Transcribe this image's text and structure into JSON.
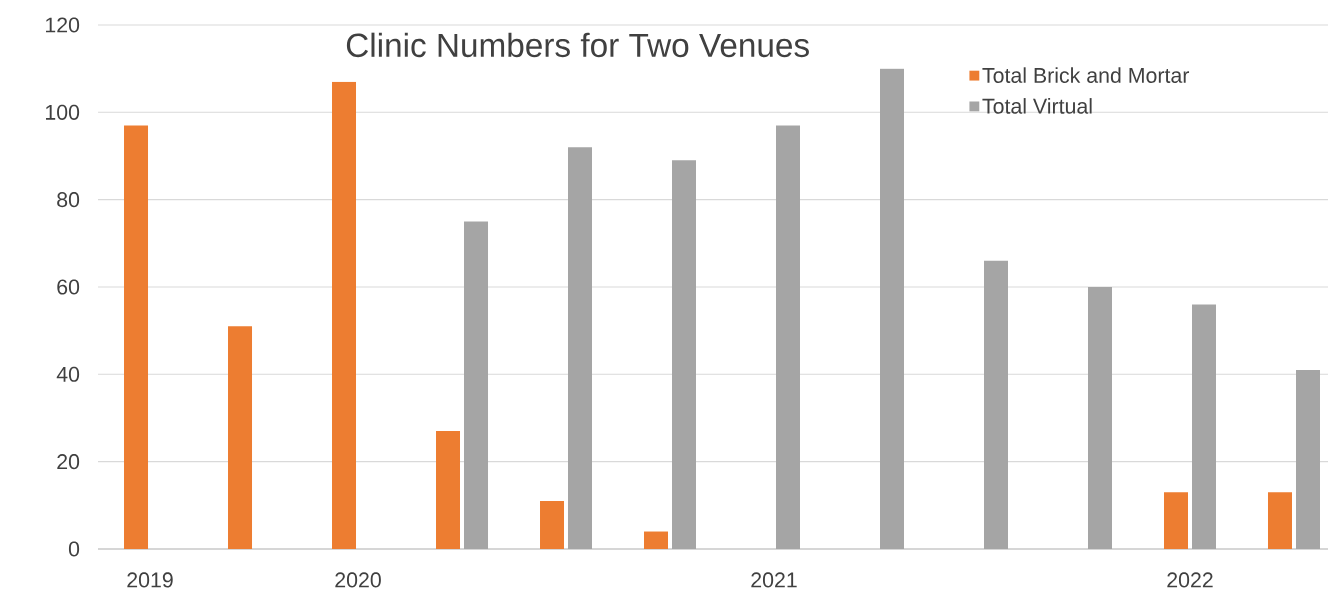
{
  "chart_data": {
    "type": "bar",
    "title": "Clinic Numbers for Two Venues",
    "categories": [
      "2019",
      null,
      "2020",
      null,
      null,
      null,
      "2021",
      null,
      null,
      null,
      "2022",
      null
    ],
    "series": [
      {
        "name": "Total Brick and Mortar",
        "color": "#ed7d31",
        "values": [
          97,
          51,
          107,
          27,
          11,
          4,
          null,
          null,
          null,
          null,
          13,
          13
        ]
      },
      {
        "name": "Total Virtual",
        "color": "#a5a5a5",
        "values": [
          null,
          null,
          null,
          75,
          92,
          89,
          97,
          110,
          66,
          60,
          56,
          41
        ]
      }
    ],
    "ylim": [
      0,
      120
    ],
    "yticks": [
      0,
      20,
      40,
      60,
      80,
      100,
      120
    ],
    "grid": "y",
    "legend": "top right"
  }
}
